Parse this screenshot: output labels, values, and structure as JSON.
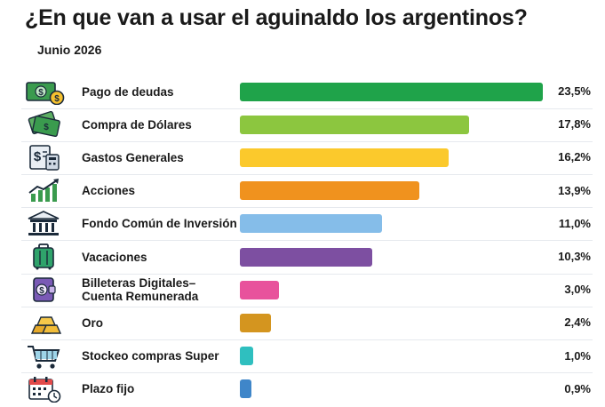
{
  "header": {
    "title": "¿En que van a usar el aguinaldo los argentinos?",
    "subtitle": "Junio 2026"
  },
  "chart_data": {
    "type": "bar",
    "orientation": "horizontal",
    "title": "¿En que van a usar el aguinaldo los argentinos?",
    "subtitle": "Junio 2026",
    "xlim": [
      0,
      23.5
    ],
    "grid": false,
    "categories": [
      "Pago de deudas",
      "Compra de Dólares",
      "Gastos Generales",
      "Acciones",
      "Fondo Común de Inversión",
      "Vacaciones",
      "Billeteras Digitales–\nCuenta Remunerada",
      "Oro",
      "Stockeo compras Super",
      "Plazo fijo"
    ],
    "values": [
      23.5,
      17.8,
      16.2,
      13.9,
      11.0,
      10.3,
      3.0,
      2.4,
      1.0,
      0.9
    ],
    "value_labels": [
      "23,5%",
      "17,8%",
      "16,2%",
      "13,9%",
      "11,0%",
      "10,3%",
      "3,0%",
      "2,4%",
      "1,0%",
      "0,9%"
    ],
    "colors": [
      "#1fa34a",
      "#8cc63f",
      "#fbc92c",
      "#f0921e",
      "#85bde9",
      "#7d4fa1",
      "#e8529c",
      "#d4951f",
      "#2fbfbf",
      "#3f86c9"
    ],
    "icons": [
      "cash-coin-icon",
      "dollar-bills-icon",
      "calculator-receipt-icon",
      "rising-chart-icon",
      "bank-building-icon",
      "suitcase-icon",
      "digital-wallet-icon",
      "gold-bars-icon",
      "shopping-cart-icon",
      "calendar-clock-icon"
    ]
  }
}
